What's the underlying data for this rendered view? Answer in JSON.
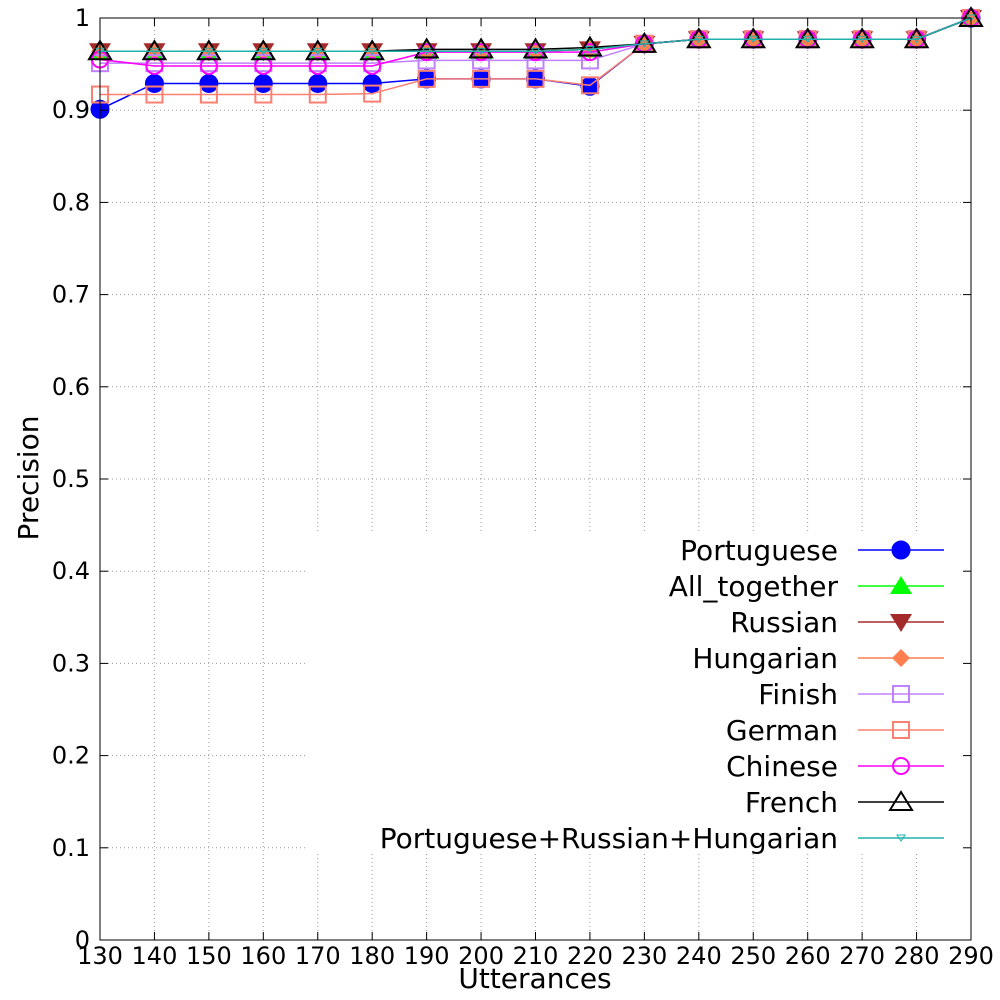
{
  "chart_data": {
    "type": "line",
    "xlabel": "Utterances",
    "ylabel": "Precision",
    "xlim": [
      130,
      290
    ],
    "ylim": [
      0,
      1
    ],
    "x_ticks": [
      "130",
      "140",
      "150",
      "160",
      "170",
      "180",
      "190",
      "200",
      "210",
      "220",
      "230",
      "240",
      "250",
      "260",
      "270",
      "280",
      "290"
    ],
    "y_ticks": [
      "0",
      "0.1",
      "0.2",
      "0.3",
      "0.4",
      "0.5",
      "0.6",
      "0.7",
      "0.8",
      "0.9",
      "1"
    ],
    "grid": true,
    "legend_position": "lower-right",
    "x": [
      130,
      140,
      150,
      160,
      170,
      180,
      190,
      200,
      210,
      220,
      230,
      240,
      250,
      260,
      270,
      280,
      290
    ],
    "series": [
      {
        "name": "Portuguese",
        "color": "#0000ff",
        "marker": "filled-circle",
        "values": [
          0.901,
          0.929,
          0.929,
          0.929,
          0.929,
          0.929,
          0.934,
          0.934,
          0.934,
          0.926,
          0.972,
          0.977,
          0.977,
          0.977,
          0.977,
          0.977,
          1.0
        ]
      },
      {
        "name": "All_together",
        "color": "#00ff00",
        "marker": "filled-triangle-up",
        "values": [
          0.964,
          0.964,
          0.964,
          0.964,
          0.964,
          0.964,
          0.964,
          0.964,
          0.964,
          0.966,
          0.972,
          0.977,
          0.977,
          0.977,
          0.977,
          0.977,
          1.0
        ]
      },
      {
        "name": "Russian",
        "color": "#a52a2a",
        "marker": "filled-triangle-down",
        "values": [
          0.964,
          0.964,
          0.964,
          0.964,
          0.964,
          0.964,
          0.964,
          0.964,
          0.964,
          0.966,
          0.972,
          0.977,
          0.977,
          0.977,
          0.977,
          0.977,
          1.0
        ]
      },
      {
        "name": "Hungarian",
        "color": "#ff7f50",
        "marker": "filled-diamond",
        "values": [
          0.964,
          0.964,
          0.964,
          0.964,
          0.964,
          0.964,
          0.964,
          0.964,
          0.964,
          0.966,
          0.972,
          0.977,
          0.977,
          0.977,
          0.977,
          0.977,
          1.0
        ]
      },
      {
        "name": "Finish",
        "color": "#c080ff",
        "marker": "open-square",
        "values": [
          0.951,
          0.951,
          0.951,
          0.951,
          0.951,
          0.951,
          0.954,
          0.954,
          0.954,
          0.954,
          0.972,
          0.977,
          0.977,
          0.977,
          0.977,
          0.977,
          1.0
        ]
      },
      {
        "name": "German",
        "color": "#fa8072",
        "marker": "open-square",
        "values": [
          0.917,
          0.917,
          0.917,
          0.917,
          0.917,
          0.918,
          0.934,
          0.934,
          0.934,
          0.927,
          0.972,
          0.977,
          0.977,
          0.977,
          0.977,
          0.977,
          1.0
        ]
      },
      {
        "name": "Chinese",
        "color": "#ff00ff",
        "marker": "open-circle",
        "values": [
          0.955,
          0.948,
          0.948,
          0.948,
          0.948,
          0.948,
          0.963,
          0.963,
          0.963,
          0.963,
          0.972,
          0.977,
          0.977,
          0.977,
          0.977,
          0.977,
          1.0
        ]
      },
      {
        "name": "French",
        "color": "#000000",
        "marker": "open-triangle-up",
        "values": [
          0.964,
          0.964,
          0.964,
          0.964,
          0.964,
          0.964,
          0.966,
          0.966,
          0.966,
          0.968,
          0.972,
          0.977,
          0.977,
          0.977,
          0.977,
          0.977,
          1.0
        ]
      },
      {
        "name": "Portuguese+Russian+Hungarian",
        "color": "#20b2aa",
        "marker": "small-open-triangle-down",
        "values": [
          0.964,
          0.964,
          0.964,
          0.964,
          0.964,
          0.964,
          0.964,
          0.964,
          0.964,
          0.966,
          0.972,
          0.977,
          0.977,
          0.977,
          0.977,
          0.977,
          1.0
        ]
      }
    ]
  }
}
